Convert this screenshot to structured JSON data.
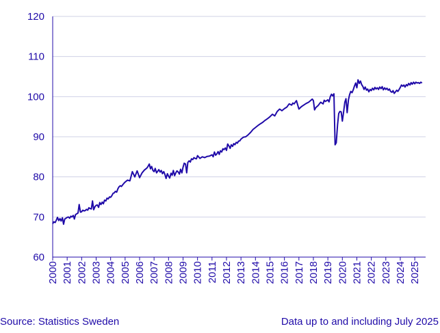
{
  "footer": {
    "source": "Source: Statistics Sweden",
    "note": "Data up to and including July 2025"
  },
  "colors": {
    "line": "#1f0aa8",
    "text": "#1f0aa8",
    "grid": "#cfd0e6",
    "axis": "#1f0aa8"
  },
  "chart_data": {
    "type": "line",
    "title": "",
    "xlabel": "",
    "ylabel": "",
    "xlim": [
      2000,
      2025.75
    ],
    "ylim": [
      60,
      120
    ],
    "yticks": [
      60,
      70,
      80,
      90,
      100,
      110,
      120
    ],
    "xticks": [
      "2000",
      "2001",
      "2002",
      "2003",
      "2004",
      "2005",
      "2006",
      "2007",
      "2008",
      "2009",
      "2010",
      "2011",
      "2012",
      "2013",
      "2014",
      "2015",
      "2016",
      "2017",
      "2018",
      "2019",
      "2020",
      "2021",
      "2022",
      "2023",
      "2024",
      "2025"
    ],
    "grid": true,
    "legend": "none",
    "series": [
      {
        "x": [
          2000.0,
          2000.08,
          2000.17,
          2000.25,
          2000.33,
          2000.42,
          2000.5,
          2000.58,
          2000.67,
          2000.75,
          2000.83,
          2000.92,
          2001.0,
          2001.08,
          2001.17,
          2001.25,
          2001.33,
          2001.42,
          2001.5,
          2001.58,
          2001.67,
          2001.75,
          2001.83,
          2001.92,
          2002.0,
          2002.08,
          2002.17,
          2002.25,
          2002.33,
          2002.42,
          2002.5,
          2002.58,
          2002.67,
          2002.75,
          2002.83,
          2002.92,
          2003.0,
          2003.08,
          2003.17,
          2003.25,
          2003.33,
          2003.42,
          2003.5,
          2003.58,
          2003.67,
          2003.75,
          2003.83,
          2003.92,
          2004.0,
          2004.08,
          2004.17,
          2004.25,
          2004.33,
          2004.42,
          2004.5,
          2004.58,
          2004.67,
          2004.75,
          2004.83,
          2004.92,
          2005.0,
          2005.17,
          2005.33,
          2005.5,
          2005.67,
          2005.83,
          2006.0,
          2006.17,
          2006.33,
          2006.5,
          2006.58,
          2006.67,
          2006.75,
          2006.83,
          2006.92,
          2007.0,
          2007.08,
          2007.17,
          2007.25,
          2007.33,
          2007.42,
          2007.5,
          2007.58,
          2007.67,
          2007.75,
          2007.83,
          2007.92,
          2008.0,
          2008.08,
          2008.17,
          2008.25,
          2008.33,
          2008.42,
          2008.5,
          2008.58,
          2008.67,
          2008.75,
          2008.83,
          2008.92,
          2009.0,
          2009.08,
          2009.17,
          2009.25,
          2009.33,
          2009.42,
          2009.5,
          2009.58,
          2009.67,
          2009.75,
          2009.83,
          2009.92,
          2010.0,
          2010.17,
          2010.33,
          2010.5,
          2010.67,
          2010.83,
          2011.0,
          2011.08,
          2011.17,
          2011.25,
          2011.33,
          2011.42,
          2011.5,
          2011.58,
          2011.67,
          2011.75,
          2011.83,
          2011.92,
          2012.0,
          2012.08,
          2012.17,
          2012.25,
          2012.33,
          2012.42,
          2012.5,
          2012.58,
          2012.67,
          2012.75,
          2012.83,
          2012.92,
          2013.0,
          2013.17,
          2013.33,
          2013.5,
          2013.67,
          2013.83,
          2014.0,
          2014.17,
          2014.33,
          2014.5,
          2014.67,
          2014.83,
          2015.0,
          2015.17,
          2015.33,
          2015.5,
          2015.67,
          2015.83,
          2016.0,
          2016.17,
          2016.33,
          2016.5,
          2016.58,
          2016.67,
          2016.83,
          2017.0,
          2017.17,
          2017.33,
          2017.5,
          2017.67,
          2017.83,
          2017.92,
          2018.0,
          2018.08,
          2018.17,
          2018.33,
          2018.5,
          2018.67,
          2018.75,
          2018.83,
          2019.0,
          2019.08,
          2019.17,
          2019.25,
          2019.33,
          2019.42,
          2019.5,
          2019.58,
          2019.67,
          2019.75,
          2019.83,
          2019.92,
          2020.0,
          2020.08,
          2020.17,
          2020.25,
          2020.33,
          2020.42,
          2020.5,
          2020.58,
          2020.67,
          2020.75,
          2020.83,
          2020.92,
          2021.0,
          2021.08,
          2021.17,
          2021.25,
          2021.33,
          2021.42,
          2021.5,
          2021.58,
          2021.67,
          2021.75,
          2021.83,
          2021.92,
          2022.0,
          2022.08,
          2022.17,
          2022.25,
          2022.33,
          2022.42,
          2022.5,
          2022.58,
          2022.67,
          2022.75,
          2022.83,
          2022.92,
          2023.0,
          2023.08,
          2023.17,
          2023.25,
          2023.33,
          2023.42,
          2023.5,
          2023.58,
          2023.67,
          2023.75,
          2023.83,
          2023.92,
          2024.0,
          2024.08,
          2024.17,
          2024.25,
          2024.33,
          2024.42,
          2024.5,
          2024.58,
          2024.67,
          2024.75,
          2024.83,
          2024.92,
          2025.0,
          2025.08,
          2025.17,
          2025.25,
          2025.33,
          2025.42,
          2025.5
        ],
        "values": [
          68.3,
          68.8,
          68.6,
          69.2,
          69.9,
          69.1,
          69.6,
          69.0,
          69.8,
          68.2,
          69.5,
          69.7,
          69.9,
          70.0,
          69.7,
          70.2,
          70.0,
          70.4,
          69.5,
          70.6,
          70.8,
          71.0,
          73.1,
          71.2,
          71.3,
          71.7,
          71.5,
          71.6,
          71.9,
          71.7,
          72.3,
          72.1,
          72.0,
          74.0,
          71.8,
          72.6,
          72.9,
          73.0,
          72.4,
          73.6,
          73.1,
          73.7,
          73.3,
          74.2,
          74.0,
          74.7,
          74.5,
          75.0,
          74.9,
          75.3,
          75.9,
          76.0,
          76.4,
          76.2,
          77.0,
          77.5,
          77.8,
          77.6,
          78.0,
          78.4,
          78.7,
          79.2,
          79.0,
          81.3,
          80.0,
          81.5,
          79.8,
          81.0,
          81.7,
          82.2,
          82.6,
          83.2,
          82.0,
          82.6,
          81.6,
          81.3,
          82.1,
          81.0,
          81.4,
          81.8,
          81.2,
          81.6,
          80.8,
          81.3,
          80.6,
          79.6,
          80.8,
          80.2,
          79.7,
          80.9,
          80.4,
          81.6,
          80.3,
          81.0,
          81.5,
          81.2,
          80.7,
          81.9,
          81.0,
          82.4,
          83.4,
          83.2,
          81.0,
          83.6,
          84.0,
          83.7,
          84.5,
          84.3,
          84.8,
          84.6,
          84.5,
          85.3,
          84.6,
          85.0,
          84.8,
          85.1,
          85.2,
          85.5,
          85.0,
          86.2,
          85.4,
          85.7,
          86.3,
          85.6,
          86.5,
          86.2,
          87.0,
          86.8,
          87.2,
          86.6,
          88.2,
          87.7,
          87.1,
          88.0,
          87.6,
          88.3,
          88.0,
          88.6,
          88.4,
          88.9,
          89.0,
          89.4,
          89.9,
          90.0,
          90.5,
          91.1,
          91.8,
          92.3,
          92.8,
          93.2,
          93.6,
          94.1,
          94.5,
          95.0,
          95.6,
          95.2,
          96.3,
          96.9,
          96.5,
          97.0,
          97.4,
          98.2,
          97.9,
          98.4,
          98.2,
          99.0,
          96.9,
          97.5,
          97.9,
          98.3,
          98.6,
          99.1,
          99.4,
          99.0,
          96.7,
          97.3,
          97.8,
          98.6,
          98.2,
          99.1,
          98.8,
          99.2,
          98.7,
          100.0,
          100.6,
          100.2,
          100.7,
          88.0,
          88.5,
          93.0,
          95.8,
          96.3,
          96.2,
          93.9,
          96.0,
          98.6,
          99.5,
          96.0,
          99.2,
          100.5,
          101.3,
          101.0,
          101.7,
          102.6,
          103.4,
          102.2,
          104.2,
          103.3,
          103.9,
          103.0,
          102.5,
          101.8,
          102.4,
          101.6,
          101.9,
          101.2,
          101.8,
          101.5,
          102.1,
          101.7,
          102.3,
          101.9,
          102.2,
          101.8,
          102.4,
          102.0,
          102.5,
          101.7,
          102.2,
          101.8,
          102.1,
          101.6,
          101.9,
          101.3,
          101.1,
          101.5,
          100.8,
          101.2,
          101.6,
          101.3,
          101.8,
          102.3,
          102.9,
          102.6,
          102.9,
          102.4,
          103.0,
          102.7,
          103.3,
          102.9,
          103.5,
          103.1,
          103.6,
          103.2,
          103.6,
          103.4,
          103.5,
          103.3,
          103.6,
          103.4
        ]
      }
    ]
  }
}
